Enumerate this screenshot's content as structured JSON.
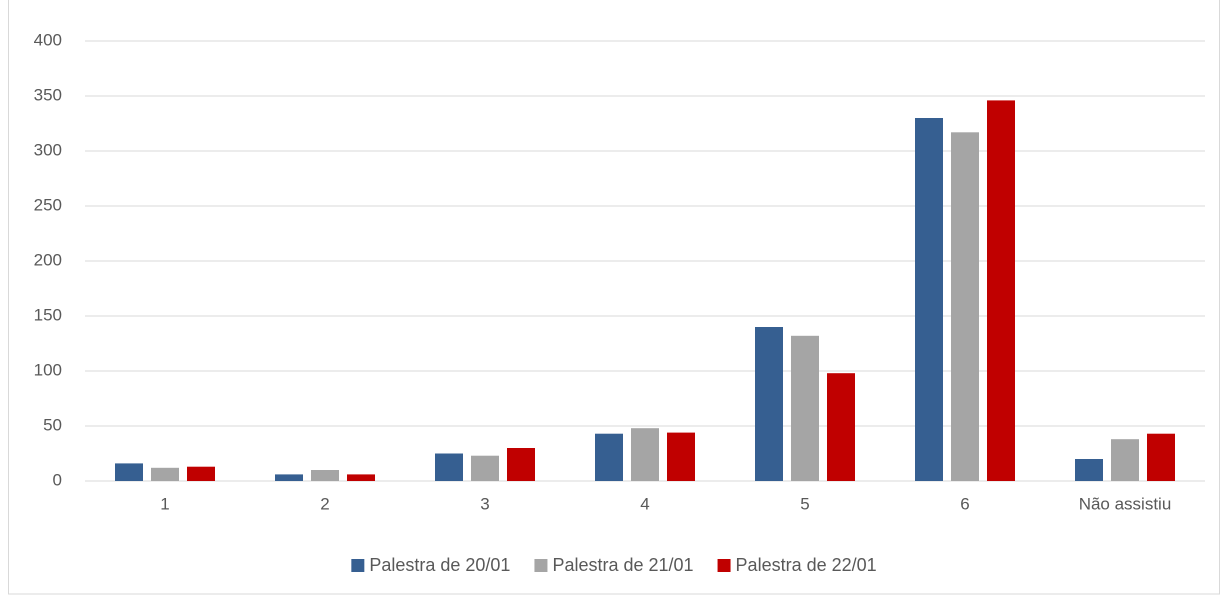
{
  "chart_data": {
    "type": "bar",
    "categories": [
      "1",
      "2",
      "3",
      "4",
      "5",
      "6",
      "Não assistiu"
    ],
    "series": [
      {
        "name": "Palestra de 20/01",
        "color": "#365f91",
        "values": [
          16,
          6,
          25,
          43,
          140,
          330,
          20
        ]
      },
      {
        "name": "Palestra de 21/01",
        "color": "#a5a5a5",
        "values": [
          12,
          10,
          23,
          48,
          132,
          317,
          38
        ]
      },
      {
        "name": "Palestra de 22/01",
        "color": "#c00000",
        "values": [
          13,
          6,
          30,
          44,
          98,
          346,
          43
        ]
      }
    ],
    "ylim": [
      0,
      400
    ],
    "yticks": [
      0,
      50,
      100,
      150,
      200,
      250,
      300,
      350,
      400
    ],
    "grid": true,
    "legend": "bottom"
  }
}
